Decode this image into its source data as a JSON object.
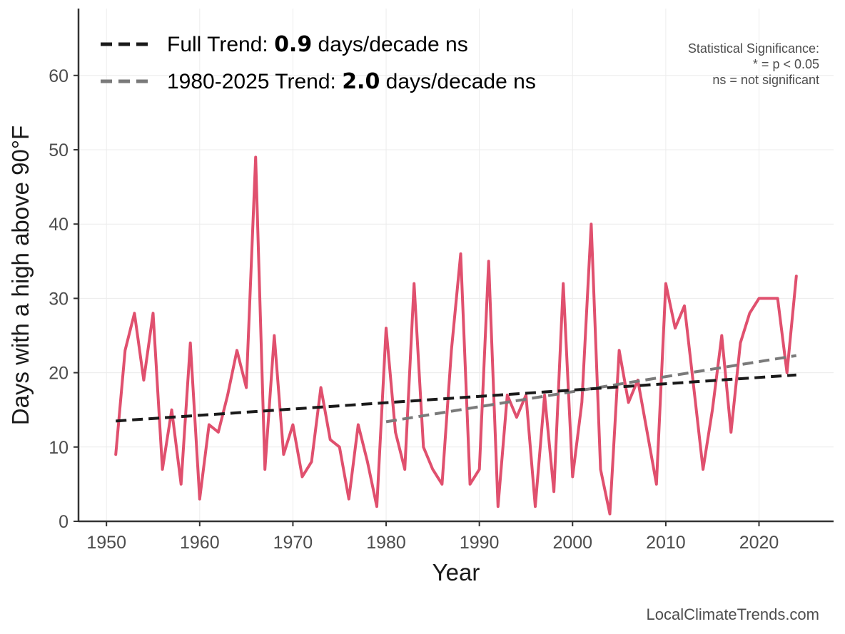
{
  "chart_data": {
    "type": "line",
    "title": "",
    "xlabel": "Year",
    "ylabel": "Days with a high above 90°F",
    "xlim": [
      1947,
      2028
    ],
    "ylim": [
      0,
      69
    ],
    "x_ticks": [
      1950,
      1960,
      1970,
      1980,
      1990,
      2000,
      2010,
      2020
    ],
    "y_ticks": [
      0,
      10,
      20,
      30,
      40,
      50,
      60
    ],
    "grid": true,
    "series": [
      {
        "name": "Days above 90°F",
        "color": "#e0506e",
        "x": [
          1951,
          1952,
          1953,
          1954,
          1955,
          1956,
          1957,
          1958,
          1959,
          1960,
          1961,
          1962,
          1963,
          1964,
          1965,
          1966,
          1967,
          1968,
          1969,
          1970,
          1971,
          1972,
          1973,
          1974,
          1975,
          1976,
          1977,
          1978,
          1979,
          1980,
          1981,
          1982,
          1983,
          1984,
          1985,
          1986,
          1987,
          1988,
          1989,
          1990,
          1991,
          1992,
          1993,
          1994,
          1995,
          1996,
          1997,
          1998,
          1999,
          2000,
          2001,
          2002,
          2003,
          2004,
          2005,
          2006,
          2007,
          2008,
          2009,
          2010,
          2011,
          2012,
          2013,
          2014,
          2015,
          2016,
          2017,
          2018,
          2019,
          2020,
          2021,
          2022,
          2023,
          2024
        ],
        "values": [
          9,
          23,
          28,
          19,
          28,
          7,
          15,
          5,
          24,
          3,
          13,
          12,
          17,
          23,
          18,
          49,
          7,
          25,
          9,
          13,
          6,
          8,
          18,
          11,
          10,
          3,
          13,
          8,
          2,
          26,
          12,
          7,
          32,
          10,
          7,
          5,
          23,
          36,
          5,
          7,
          35,
          2,
          17,
          14,
          17,
          2,
          17,
          4,
          32,
          6,
          16,
          40,
          7,
          1,
          23,
          16,
          19,
          12,
          5,
          32,
          26,
          29,
          18,
          7,
          15,
          25,
          12,
          24,
          28,
          30,
          30,
          30,
          20,
          33
        ]
      }
    ],
    "trend_lines": [
      {
        "name": "Full Trend",
        "color": "#1a1a1a",
        "x": [
          1951,
          2024
        ],
        "values": [
          13.5,
          19.7
        ]
      },
      {
        "name": "1980-2025 Trend",
        "color": "#7a7a7a",
        "x": [
          1980,
          2024
        ],
        "values": [
          13.4,
          22.3
        ]
      }
    ],
    "legend": [
      {
        "prefix": "Full Trend: ",
        "value": "0.9",
        "suffix": " days/decade ns",
        "color": "#1a1a1a"
      },
      {
        "prefix": "1980-2025 Trend: ",
        "value": "2.0",
        "suffix": " days/decade ns",
        "color": "#7a7a7a"
      }
    ],
    "significance_note": {
      "title": "Statistical Significance:",
      "line1": "* = p < 0.05",
      "line2": "ns = not significant"
    },
    "source": "LocalClimateTrends.com"
  }
}
